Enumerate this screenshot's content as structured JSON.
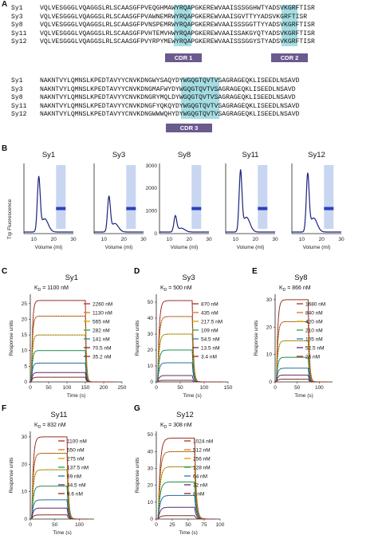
{
  "panel_a": {
    "label": "A",
    "block1": [
      {
        "name": "Sy1",
        "seq": "VQLVESGGGLVQAGGSLRLSCAASGFPVEQGHMAWYRQAPGKEREWVAAISSSGGHWTYADSVKGRFTISR"
      },
      {
        "name": "Sy3",
        "seq": "VQLVESGGGLVQAGGSLRLSCAASGFPVAWNEMRWYRQAPGKEREWVAAISGVTTYYADSVKGRFTISR"
      },
      {
        "name": "Sy8",
        "seq": "VQLVESGGGLVQAGGSLRLSCAASGFPVNSPEMRWYRQAPGKEREWVAAISSSGGTTYYADSVKGRFTISR"
      },
      {
        "name": "Sy11",
        "seq": "VQLVESGGGLVQAGGSLRLSCAASGFPVHTEMVHWYRQAPGKEREWVAAISSAKGYQTYADSVKGRFTISR"
      },
      {
        "name": "Sy12",
        "seq": "VQLVESGGGLVQAGGSLRLSCAASGFPVYRPYMEWYRQAPGKEREWVAAISSSGGYSTYADSVKGRFTISR"
      }
    ],
    "block2": [
      {
        "name": "Sy1",
        "seq": "NAKNTVYLQMNSLKPEDTAVYYCNVKDNGWYSAQYDYWGQGTQVTVSAGRAGEQKLISEEDLNSAVD"
      },
      {
        "name": "Sy3",
        "seq": "NAKNTVYLQMNSLKPEDTAVYYCNVKDNGMAFWYDYWGQGTQVTVSAGRAGEQKLISEEDLNSAVD"
      },
      {
        "name": "Sy8",
        "seq": "NAKNTVYLQMNSLKPEDTAVYYCNVKDNGRYMQLDYWGQGTQVTVSAGRAGEQKLISEEDLNSAVD"
      },
      {
        "name": "Sy11",
        "seq": "NAKNTVYLQMNSLKPEDTAVYYCNVKDNGFYQKQYDYWGQGTQVTVSAGRAGEQKLISEEDLNSAVD"
      },
      {
        "name": "Sy12",
        "seq": "NAKNTVYLQMNSLKPEDTAVYYCNVKDNGWWWQHYDYWGQGTQVTVSAGRAGEQKLISEEDLNSAVD"
      }
    ],
    "cdr1": "CDR 1",
    "cdr2": "CDR 2",
    "cdr3": "CDR 3"
  },
  "panel_b": {
    "label": "B",
    "ylabel": "Trp Fluorescence",
    "xlabel": "Volume (ml)",
    "plots": [
      {
        "title": "Sy1",
        "yticks": [],
        "peak_x": 12.5,
        "peak_h": 0.85
      },
      {
        "title": "Sy3",
        "yticks": [],
        "peak_x": 12.5,
        "peak_h": 0.55
      },
      {
        "title": "Sy8",
        "yticks": [
          "0",
          "1000",
          "2000",
          "3000"
        ],
        "peak_x": 13.0,
        "peak_h": 0.25
      },
      {
        "title": "Sy11",
        "yticks": [],
        "peak_x": 12.5,
        "peak_h": 0.95
      },
      {
        "title": "Sy12",
        "yticks": [],
        "peak_x": 13.0,
        "peak_h": 0.9
      }
    ],
    "xticks": [
      "10",
      "20",
      "30"
    ]
  },
  "chart_data": [
    {
      "label": "C",
      "type": "line",
      "title": "Sy1",
      "kd": "K",
      "kd_rest": " = 1100 nM",
      "kd_sub": "D",
      "xlabel": "Time (s)",
      "ylabel": "Response units",
      "xticks": [
        "0",
        "50",
        "100",
        "150",
        "200",
        "250"
      ],
      "xlim": [
        0,
        250
      ],
      "yticks": [
        "0",
        "5",
        "10",
        "15",
        "20",
        "25"
      ],
      "ylim": [
        0,
        28
      ],
      "assoc_end": 150,
      "series": [
        {
          "name": "2260 nM",
          "plateau": 26,
          "color": "#c0392b"
        },
        {
          "name": "1130 nM",
          "plateau": 21,
          "color": "#e67e22"
        },
        {
          "name": "565 nM",
          "plateau": 15,
          "color": "#d4ac0d"
        },
        {
          "name": "282 nM",
          "plateau": 10,
          "color": "#27ae60"
        },
        {
          "name": "141 nM",
          "plateau": 6,
          "color": "#2e86c1"
        },
        {
          "name": "70.5 nM",
          "plateau": 3,
          "color": "#6c3483"
        },
        {
          "name": "35.2 nM",
          "plateau": 1.5,
          "color": "#a93226"
        }
      ]
    },
    {
      "label": "D",
      "type": "line",
      "title": "Sy3",
      "kd": "K",
      "kd_rest": " = 500 nM",
      "kd_sub": "D",
      "xlabel": "Time (s)",
      "ylabel": "Response units",
      "xticks": [
        "0",
        "50",
        "100",
        "150"
      ],
      "xlim": [
        0,
        150
      ],
      "yticks": [
        "0",
        "10",
        "20",
        "30",
        "40",
        "50"
      ],
      "ylim": [
        0,
        55
      ],
      "assoc_end": 75,
      "series": [
        {
          "name": "870 nM",
          "plateau": 51,
          "color": "#c0392b"
        },
        {
          "name": "435 nM",
          "plateau": 41,
          "color": "#e67e22"
        },
        {
          "name": "217.5 nM",
          "plateau": 30,
          "color": "#d4ac0d"
        },
        {
          "name": "109 nM",
          "plateau": 20,
          "color": "#27ae60"
        },
        {
          "name": "54.5 nM",
          "plateau": 12,
          "color": "#2e86c1"
        },
        {
          "name": "13.5 nM",
          "plateau": 4,
          "color": "#6c3483"
        },
        {
          "name": "3.4 nM",
          "plateau": 1,
          "color": "#a93226"
        }
      ]
    },
    {
      "label": "E",
      "type": "line",
      "title": "Sy8",
      "kd": "K",
      "kd_rest": " = 866 nM",
      "kd_sub": "D",
      "xlabel": "Time (s)",
      "ylabel": "Response units",
      "xticks": [
        "0",
        "50",
        "100"
      ],
      "xlim": [
        0,
        130
      ],
      "yticks": [
        "0",
        "10",
        "20",
        "30"
      ],
      "ylim": [
        0,
        32
      ],
      "assoc_end": 75,
      "series": [
        {
          "name": "1680 nM",
          "plateau": 30,
          "color": "#c0392b"
        },
        {
          "name": "840 nM",
          "plateau": 22,
          "color": "#e67e22"
        },
        {
          "name": "420 nM",
          "plateau": 15,
          "color": "#d4ac0d"
        },
        {
          "name": "210 nM",
          "plateau": 9,
          "color": "#27ae60"
        },
        {
          "name": "105 nM",
          "plateau": 5,
          "color": "#2e86c1"
        },
        {
          "name": "52.5 nM",
          "plateau": 2.5,
          "color": "#6c3483"
        },
        {
          "name": "26 nM",
          "plateau": 1,
          "color": "#a93226"
        }
      ]
    },
    {
      "label": "F",
      "type": "line",
      "title": "Sy11",
      "kd": "K",
      "kd_rest": " = 832 nM",
      "kd_sub": "D",
      "xlabel": "Time (s)",
      "ylabel": "Response units",
      "xticks": [
        "0",
        "50",
        "100"
      ],
      "xlim": [
        0,
        130
      ],
      "yticks": [
        "0",
        "10",
        "20",
        "30"
      ],
      "ylim": [
        0,
        32
      ],
      "assoc_end": 75,
      "series": [
        {
          "name": "1100 nM",
          "plateau": 30,
          "color": "#c0392b"
        },
        {
          "name": "550 nM",
          "plateau": 24,
          "color": "#e67e22"
        },
        {
          "name": "275 nM",
          "plateau": 18,
          "color": "#d4ac0d"
        },
        {
          "name": "137.5 nM",
          "plateau": 12,
          "color": "#27ae60"
        },
        {
          "name": "69 nM",
          "plateau": 7,
          "color": "#2e86c1"
        },
        {
          "name": "34.5 nM",
          "plateau": 4,
          "color": "#6c3483"
        },
        {
          "name": "8.6 nM",
          "plateau": 1.5,
          "color": "#a93226"
        }
      ]
    },
    {
      "label": "G",
      "type": "line",
      "title": "Sy12",
      "kd": "K",
      "kd_rest": " = 308 nM",
      "kd_sub": "D",
      "xlabel": "Time (s)",
      "ylabel": "Response units",
      "xticks": [
        "0",
        "25",
        "50",
        "75",
        "100"
      ],
      "xlim": [
        0,
        100
      ],
      "yticks": [
        "0",
        "10",
        "20",
        "30",
        "40",
        "50"
      ],
      "ylim": [
        0,
        52
      ],
      "assoc_end": 60,
      "series": [
        {
          "name": "1024 nM",
          "plateau": 48,
          "color": "#c0392b"
        },
        {
          "name": "512 nM",
          "plateau": 40,
          "color": "#e67e22"
        },
        {
          "name": "256 nM",
          "plateau": 31,
          "color": "#d4ac0d"
        },
        {
          "name": "128 nM",
          "plateau": 22,
          "color": "#27ae60"
        },
        {
          "name": "64 nM",
          "plateau": 14,
          "color": "#2e86c1"
        },
        {
          "name": "32 nM",
          "plateau": 7,
          "color": "#6c3483"
        },
        {
          "name": "8 nM",
          "plateau": 2,
          "color": "#a93226"
        }
      ]
    }
  ]
}
